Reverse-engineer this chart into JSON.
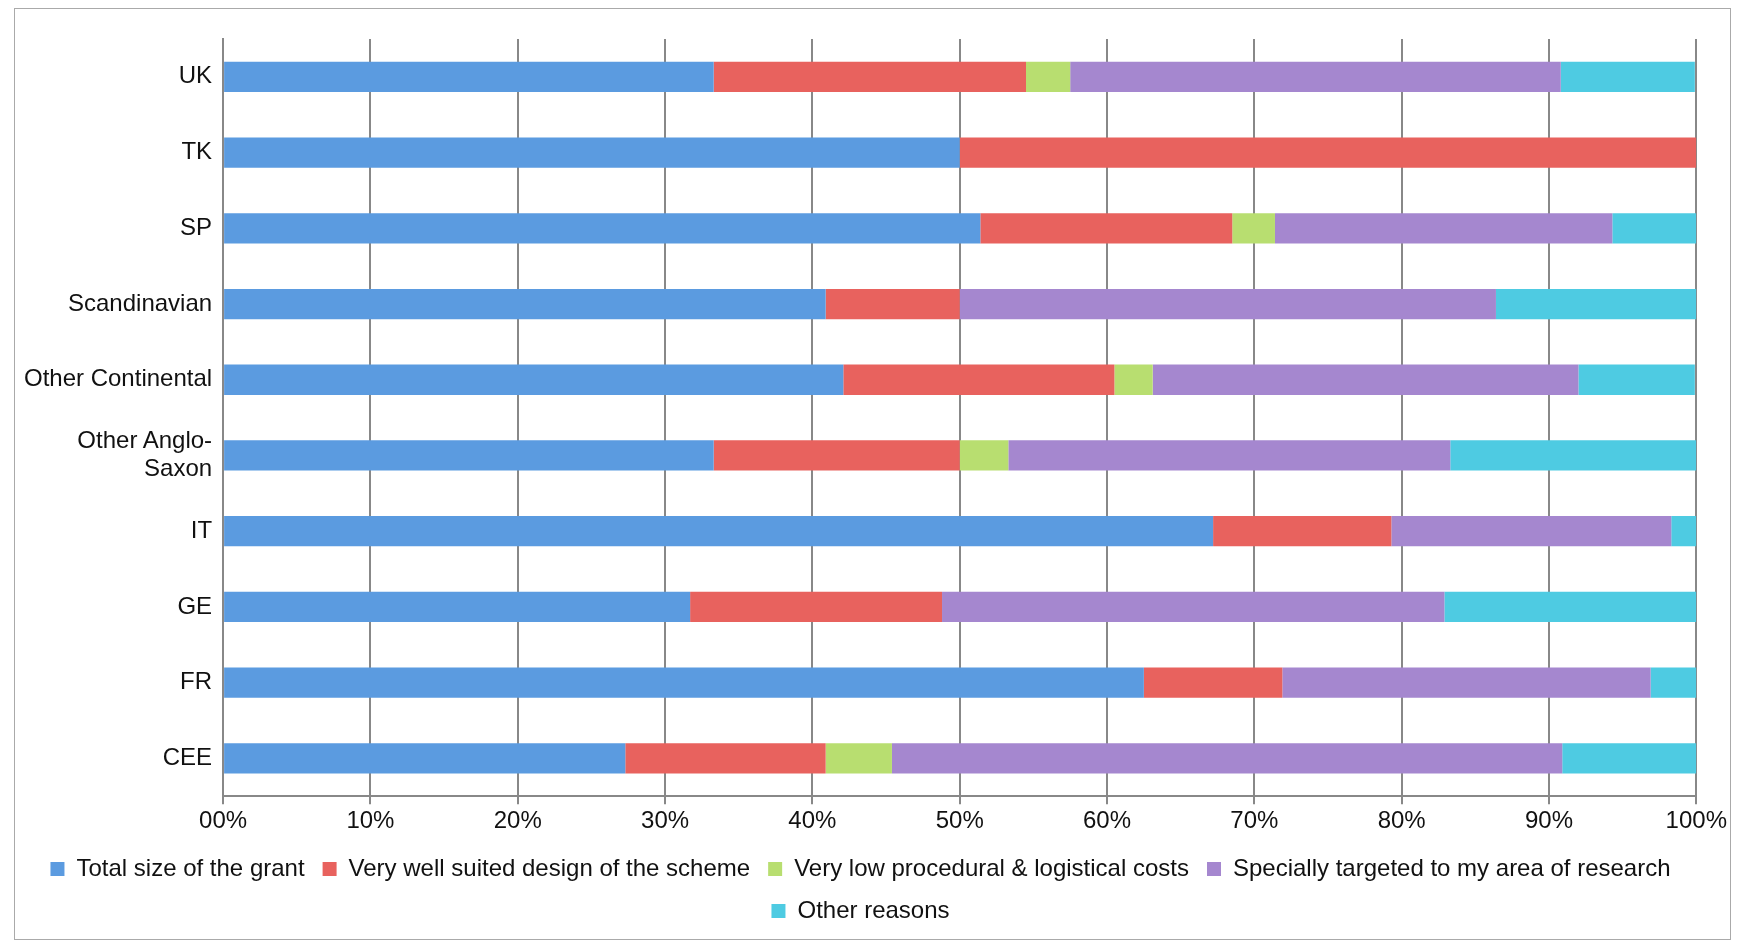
{
  "chart_data": {
    "type": "bar",
    "orientation": "horizontal",
    "stacked": true,
    "categories": [
      "UK",
      "TK",
      "SP",
      "Scandinavian",
      "Other Continental",
      "Other Anglo-Saxon",
      "IT",
      "GE",
      "FR",
      "CEE"
    ],
    "series": [
      {
        "name": "Total size of the grant",
        "color": "#5b9be0",
        "values": [
          33.3,
          50,
          51.4,
          40.9,
          42.1,
          33.3,
          67.2,
          31.7,
          62.5,
          27.3
        ]
      },
      {
        "name": "Very well suited design of the scheme",
        "color": "#e8625e",
        "values": [
          21.2,
          50,
          17.1,
          9.1,
          18.4,
          16.7,
          12.1,
          17.1,
          9.4,
          13.6
        ]
      },
      {
        "name": "Very low procedural & logistical costs",
        "color": "#b8de70",
        "values": [
          3.0,
          0,
          2.9,
          0,
          2.6,
          3.3,
          0,
          0,
          0,
          4.5
        ]
      },
      {
        "name": "Specially targeted to my area of research",
        "color": "#a587cf",
        "values": [
          33.3,
          0,
          22.9,
          36.4,
          28.9,
          30.0,
          19.0,
          34.1,
          25.0,
          45.5
        ]
      },
      {
        "name": "Other reasons",
        "color": "#4ecbe2",
        "values": [
          9.1,
          0,
          5.7,
          13.6,
          7.9,
          16.7,
          1.7,
          17.1,
          3.1,
          9.1
        ]
      }
    ],
    "xlim": [
      0,
      100
    ],
    "xticks": [
      {
        "value": 0,
        "label": "00%"
      },
      {
        "value": 10,
        "label": "10%"
      },
      {
        "value": 20,
        "label": "20%"
      },
      {
        "value": 30,
        "label": "30%"
      },
      {
        "value": 40,
        "label": "40%"
      },
      {
        "value": 50,
        "label": "50%"
      },
      {
        "value": 60,
        "label": "60%"
      },
      {
        "value": 70,
        "label": "70%"
      },
      {
        "value": 80,
        "label": "80%"
      },
      {
        "value": 90,
        "label": "90%"
      },
      {
        "value": 100,
        "label": "100%"
      }
    ],
    "grid": "x",
    "legend": "bottom"
  }
}
